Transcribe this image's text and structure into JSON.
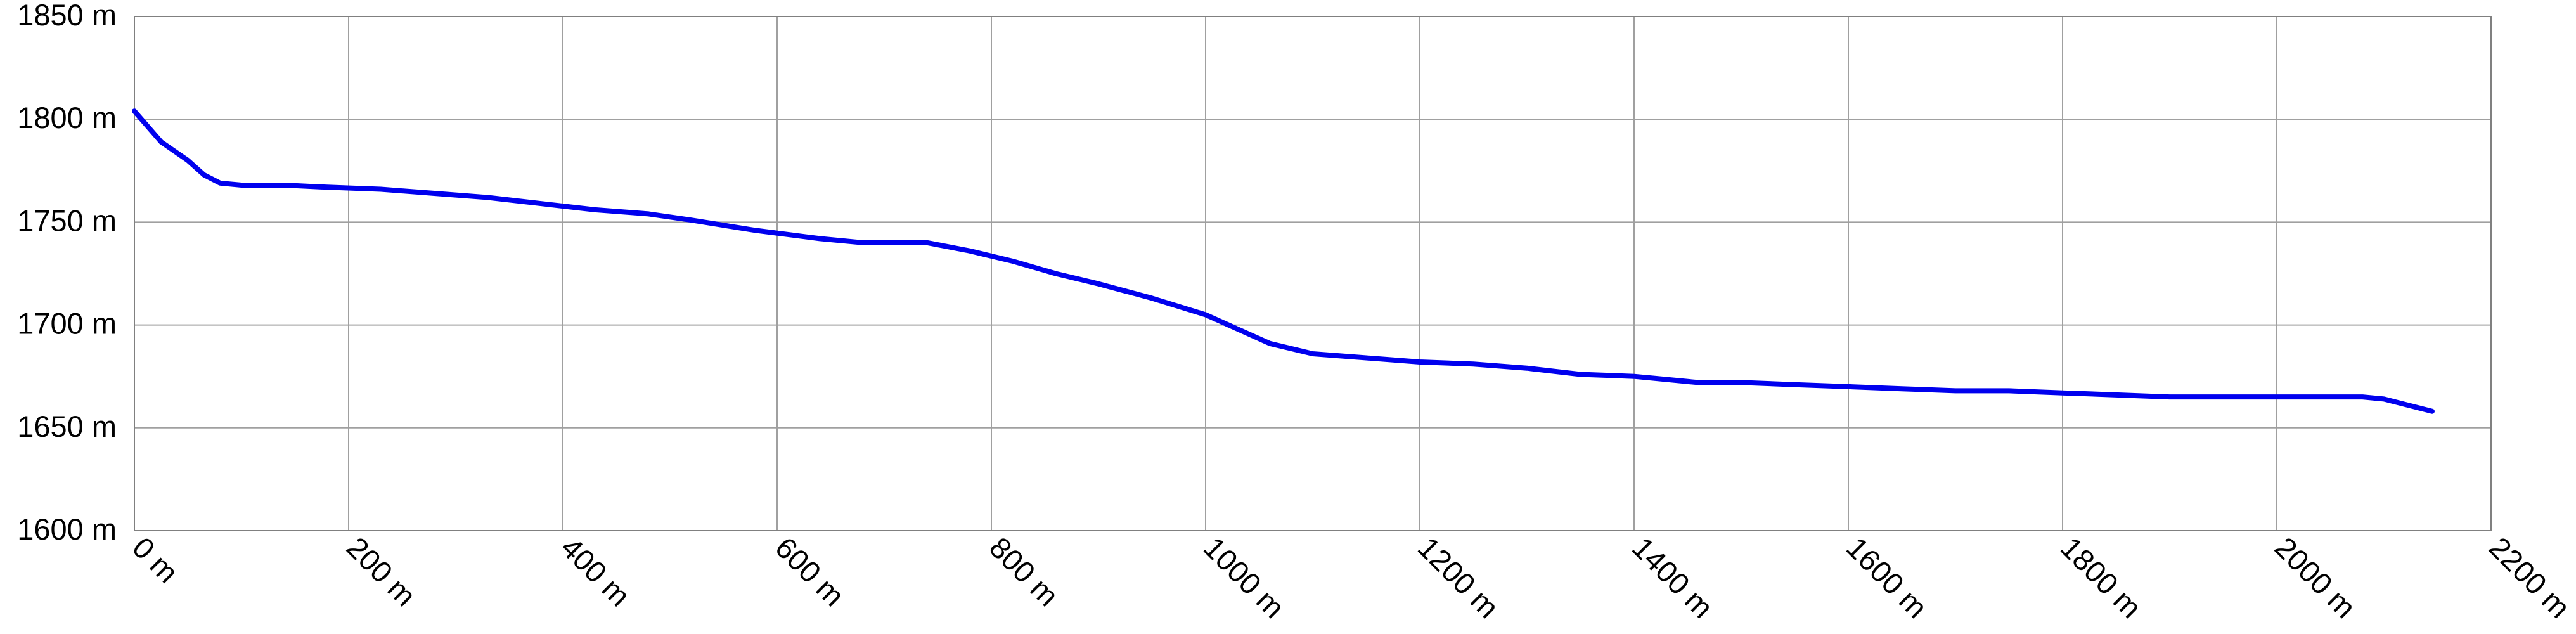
{
  "chart_data": {
    "type": "line",
    "title": "",
    "xlabel": "",
    "ylabel": "",
    "x_unit": "m",
    "y_unit": "m",
    "xlim": [
      0,
      2200
    ],
    "ylim": [
      1600,
      1850
    ],
    "x_ticks": [
      0,
      200,
      400,
      600,
      800,
      1000,
      1200,
      1400,
      1600,
      1800,
      2000,
      2200
    ],
    "y_ticks": [
      1600,
      1650,
      1700,
      1750,
      1800,
      1850
    ],
    "x_tick_labels": [
      "0 m",
      "200 m",
      "400 m",
      "600 m",
      "800 m",
      "1000 m",
      "1200 m",
      "1400 m",
      "1600 m",
      "1800 m",
      "2000 m",
      "2200 m"
    ],
    "y_tick_labels": [
      "1600 m",
      "1650 m",
      "1700 m",
      "1750 m",
      "1800 m",
      "1850 m"
    ],
    "grid": true,
    "legend": "none",
    "colors": {
      "line": "#0000ee",
      "grid": "#a0a0a0",
      "frame": "#808080",
      "background": "#ffffff"
    },
    "series": [
      {
        "x": [
          0,
          25,
          50,
          65,
          80,
          100,
          140,
          180,
          230,
          280,
          330,
          380,
          430,
          480,
          520,
          580,
          640,
          680,
          720,
          740,
          780,
          820,
          860,
          900,
          950,
          1000,
          1030,
          1060,
          1100,
          1150,
          1200,
          1250,
          1300,
          1350,
          1400,
          1420,
          1460,
          1500,
          1550,
          1600,
          1650,
          1700,
          1750,
          1800,
          1850,
          1900,
          1950,
          2000,
          2050,
          2080,
          2100,
          2145
        ],
        "y": [
          1804,
          1789,
          1780,
          1773,
          1769,
          1768,
          1768,
          1767,
          1766,
          1764,
          1762,
          1759,
          1756,
          1754,
          1751,
          1746,
          1742,
          1740,
          1740,
          1740,
          1736,
          1731,
          1725,
          1720,
          1713,
          1705,
          1698,
          1691,
          1686,
          1684,
          1682,
          1681,
          1679,
          1676,
          1675,
          1674,
          1672,
          1672,
          1671,
          1670,
          1669,
          1668,
          1668,
          1667,
          1666,
          1665,
          1665,
          1665,
          1665,
          1665,
          1664,
          1658
        ]
      }
    ]
  }
}
